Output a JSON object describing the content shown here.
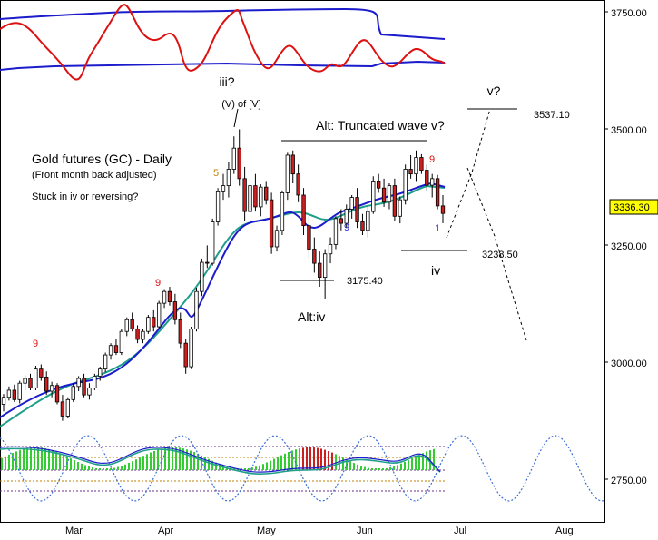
{
  "chart_data": {
    "type": "candlestick",
    "title": "Gold futures (GC) - Daily",
    "subtitle": "(Front month back adjusted)",
    "note": "Stuck in iv or reversing?",
    "x_labels": [
      "Mar",
      "Apr",
      "May",
      "Jun",
      "Jul",
      "Aug"
    ],
    "y_ticks": [
      "3750.00",
      "3500.00",
      "3250.00",
      "3000.00",
      "2750.00"
    ],
    "y_range": [
      2680,
      3790
    ],
    "last_price": "3336.30",
    "colors": {
      "up": "#ffffff",
      "down": "#cc1f1f",
      "ma_fast": "#1c1ccc",
      "ma_slow": "#1f9e8a",
      "osc_line": "#dd1111",
      "osc_band": "#1c1ccc",
      "histogram": "#33cc33",
      "cycle": "#3a6fd8",
      "price_box": "#ffff00"
    },
    "annotations": {
      "wave_iii": "iii?",
      "wave_v_of": "(V) of [V]",
      "alt_truncated": "Alt: Truncated wave v?",
      "wave_v": "v?",
      "level_high": "3537.10",
      "level_iv": "3238.50",
      "wave_iv": "iv",
      "level_low": "3175.40",
      "alt_iv": "Alt:iv",
      "count_9a": "9",
      "count_9b": "9",
      "count_5": "5",
      "count_9c": "9",
      "count_9d": "9",
      "count_1": "1"
    },
    "candles": [
      [
        2930,
        2952,
        2915,
        2945
      ],
      [
        2945,
        2968,
        2938,
        2960
      ],
      [
        2960,
        2972,
        2935,
        2940
      ],
      [
        2940,
        2980,
        2932,
        2975
      ],
      [
        2975,
        2992,
        2960,
        2985
      ],
      [
        2985,
        2995,
        2960,
        2965
      ],
      [
        2965,
        3012,
        2960,
        3005
      ],
      [
        3005,
        3015,
        2980,
        2988
      ],
      [
        2988,
        3000,
        2950,
        2958
      ],
      [
        2958,
        2978,
        2945,
        2970
      ],
      [
        2970,
        2975,
        2930,
        2935
      ],
      [
        2935,
        2950,
        2895,
        2905
      ],
      [
        2905,
        2945,
        2900,
        2940
      ],
      [
        2940,
        2975,
        2935,
        2968
      ],
      [
        2968,
        2990,
        2958,
        2985
      ],
      [
        2985,
        2995,
        2945,
        2950
      ],
      [
        2950,
        2975,
        2940,
        2965
      ],
      [
        2965,
        2995,
        2960,
        2990
      ],
      [
        2990,
        3010,
        2980,
        3005
      ],
      [
        3005,
        3040,
        2998,
        3035
      ],
      [
        3035,
        3060,
        3025,
        3055
      ],
      [
        3055,
        3070,
        3035,
        3040
      ],
      [
        3040,
        3090,
        3035,
        3085
      ],
      [
        3085,
        3115,
        3075,
        3110
      ],
      [
        3110,
        3125,
        3085,
        3090
      ],
      [
        3090,
        3098,
        3060,
        3068
      ],
      [
        3068,
        3090,
        3060,
        3085
      ],
      [
        3085,
        3120,
        3080,
        3115
      ],
      [
        3115,
        3130,
        3085,
        3095
      ],
      [
        3095,
        3150,
        3090,
        3145
      ],
      [
        3145,
        3175,
        3135,
        3170
      ],
      [
        3170,
        3180,
        3140,
        3148
      ],
      [
        3148,
        3165,
        3100,
        3110
      ],
      [
        3110,
        3125,
        3050,
        3060
      ],
      [
        3060,
        3070,
        2995,
        3010
      ],
      [
        3010,
        3095,
        3005,
        3090
      ],
      [
        3090,
        3178,
        3085,
        3170
      ],
      [
        3170,
        3240,
        3160,
        3232
      ],
      [
        3232,
        3268,
        3220,
        3230
      ],
      [
        3230,
        3325,
        3225,
        3318
      ],
      [
        3318,
        3390,
        3310,
        3382
      ],
      [
        3382,
        3420,
        3365,
        3395
      ],
      [
        3395,
        3445,
        3370,
        3430
      ],
      [
        3430,
        3500,
        3420,
        3475
      ],
      [
        3475,
        3515,
        3395,
        3410
      ],
      [
        3410,
        3435,
        3320,
        3340
      ],
      [
        3340,
        3405,
        3325,
        3395
      ],
      [
        3395,
        3420,
        3340,
        3350
      ],
      [
        3350,
        3398,
        3330,
        3392
      ],
      [
        3392,
        3405,
        3355,
        3365
      ],
      [
        3365,
        3380,
        3250,
        3265
      ],
      [
        3265,
        3310,
        3255,
        3300
      ],
      [
        3300,
        3385,
        3290,
        3380
      ],
      [
        3380,
        3465,
        3365,
        3460
      ],
      [
        3460,
        3470,
        3400,
        3420
      ],
      [
        3420,
        3440,
        3360,
        3375
      ],
      [
        3375,
        3390,
        3290,
        3310
      ],
      [
        3310,
        3330,
        3240,
        3260
      ],
      [
        3260,
        3285,
        3210,
        3230
      ],
      [
        3230,
        3255,
        3180,
        3200
      ],
      [
        3200,
        3260,
        3155,
        3250
      ],
      [
        3250,
        3285,
        3230,
        3270
      ],
      [
        3270,
        3330,
        3260,
        3325
      ],
      [
        3325,
        3345,
        3300,
        3315
      ],
      [
        3315,
        3355,
        3305,
        3345
      ],
      [
        3345,
        3375,
        3325,
        3370
      ],
      [
        3370,
        3390,
        3305,
        3318
      ],
      [
        3318,
        3335,
        3290,
        3300
      ],
      [
        3300,
        3350,
        3285,
        3340
      ],
      [
        3340,
        3415,
        3335,
        3405
      ],
      [
        3405,
        3420,
        3380,
        3390
      ],
      [
        3390,
        3410,
        3350,
        3360
      ],
      [
        3360,
        3400,
        3345,
        3395
      ],
      [
        3395,
        3410,
        3320,
        3330
      ],
      [
        3330,
        3372,
        3315,
        3365
      ],
      [
        3365,
        3440,
        3355,
        3430
      ],
      [
        3430,
        3460,
        3410,
        3420
      ],
      [
        3420,
        3470,
        3405,
        3455
      ],
      [
        3455,
        3462,
        3420,
        3428
      ],
      [
        3428,
        3440,
        3385,
        3396
      ],
      [
        3396,
        3420,
        3370,
        3410
      ],
      [
        3410,
        3418,
        3345,
        3352
      ],
      [
        3352,
        3375,
        3315,
        3336
      ]
    ]
  }
}
